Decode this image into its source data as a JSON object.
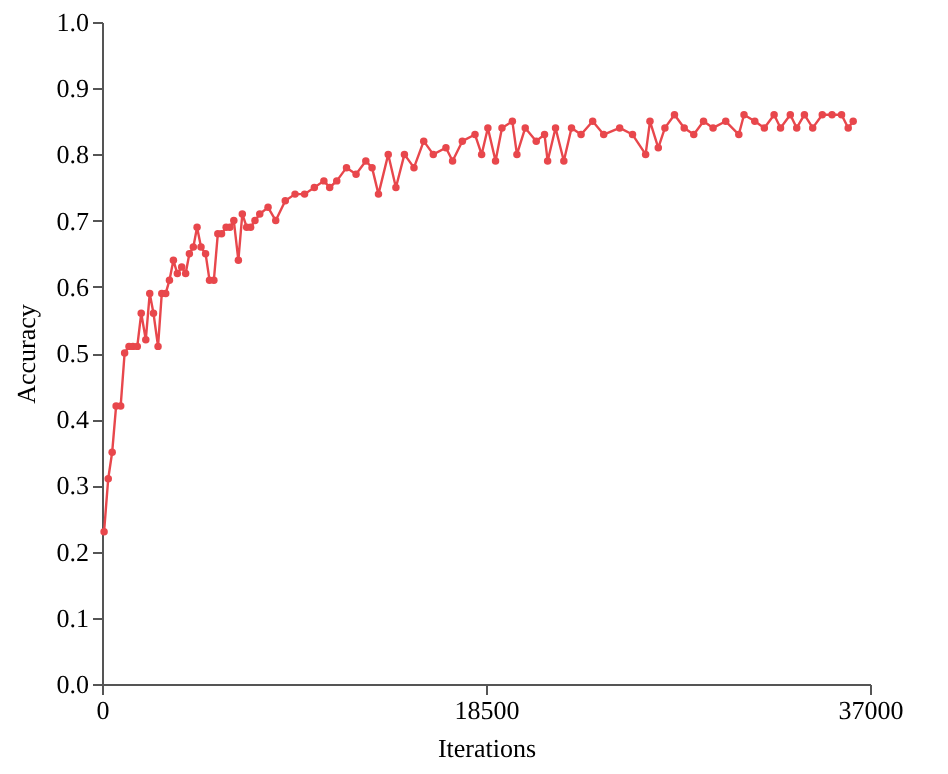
{
  "chart_data": {
    "type": "line",
    "xlabel": "Iterations",
    "ylabel": "Accuracy",
    "xlim": [
      0,
      37000
    ],
    "xticks": [
      0,
      18500,
      37000
    ],
    "ylim": [
      0,
      1.0
    ],
    "yticks": [
      {
        "value": 0,
        "label": "0.0"
      },
      0.1,
      0.2,
      0.3,
      0.4,
      0.5,
      0.6,
      0.7,
      0.8,
      0.9,
      {
        "value": 1,
        "label": "1.0"
      }
    ],
    "grid": false,
    "marker": "circle",
    "line_style": "solid",
    "series": [
      {
        "color": "#e8474c",
        "x": [
          100,
          300,
          490,
          680,
          900,
          1090,
          1300,
          1490,
          1700,
          1890,
          2110,
          2300,
          2480,
          2700,
          2880,
          3070,
          3250,
          3440,
          3630,
          3840,
          4030,
          4210,
          4400,
          4580,
          4770,
          4990,
          5180,
          5390,
          5580,
          5760,
          5980,
          6160,
          6350,
          6570,
          6760,
          6970,
          7160,
          7370,
          7600,
          8000,
          8370,
          8830,
          9300,
          9760,
          10230,
          10690,
          10970,
          11310,
          11780,
          12240,
          12710,
          13010,
          13320,
          13790,
          14160,
          14570,
          15030,
          15500,
          15960,
          16570,
          16890,
          17360,
          17970,
          18290,
          18590,
          18960,
          19270,
          19770,
          19990,
          20390,
          20920,
          21320,
          21470,
          21850,
          22250,
          22620,
          23080,
          23640,
          24170,
          24940,
          25560,
          26190,
          26400,
          26800,
          27120,
          27580,
          28050,
          28510,
          28980,
          29440,
          30050,
          30680,
          30930,
          31450,
          31910,
          32380,
          32690,
          33160,
          33470,
          33840,
          34240,
          34700,
          35170,
          35630,
          35950,
          36190
        ],
        "values": [
          0.23,
          0.31,
          0.35,
          0.42,
          0.42,
          0.5,
          0.51,
          0.51,
          0.51,
          0.56,
          0.52,
          0.59,
          0.56,
          0.51,
          0.59,
          0.59,
          0.61,
          0.64,
          0.62,
          0.63,
          0.62,
          0.65,
          0.66,
          0.69,
          0.66,
          0.65,
          0.61,
          0.61,
          0.68,
          0.68,
          0.69,
          0.69,
          0.7,
          0.64,
          0.71,
          0.69,
          0.69,
          0.7,
          0.71,
          0.72,
          0.7,
          0.73,
          0.74,
          0.74,
          0.75,
          0.76,
          0.75,
          0.76,
          0.78,
          0.77,
          0.79,
          0.78,
          0.74,
          0.8,
          0.75,
          0.8,
          0.78,
          0.82,
          0.8,
          0.81,
          0.79,
          0.82,
          0.83,
          0.8,
          0.84,
          0.79,
          0.84,
          0.85,
          0.8,
          0.84,
          0.82,
          0.83,
          0.79,
          0.84,
          0.79,
          0.84,
          0.83,
          0.85,
          0.83,
          0.84,
          0.83,
          0.8,
          0.85,
          0.81,
          0.84,
          0.86,
          0.84,
          0.83,
          0.85,
          0.84,
          0.85,
          0.83,
          0.86,
          0.85,
          0.84,
          0.86,
          0.84,
          0.86,
          0.84,
          0.86,
          0.84,
          0.86,
          0.86,
          0.86,
          0.84,
          0.85
        ]
      }
    ]
  }
}
